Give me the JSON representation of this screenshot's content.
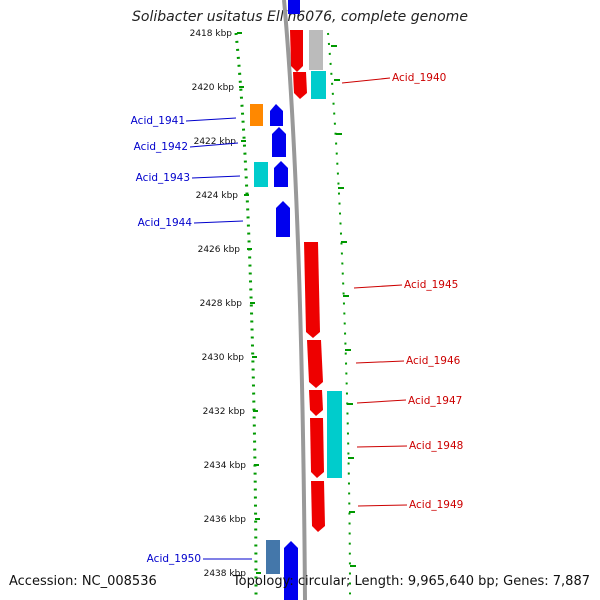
{
  "title": "Solibacter usitatus Ellin6076, complete genome",
  "footer": {
    "accession": "Accession: NC_008536",
    "stats": "Topology: circular; Length: 9,965,640 bp; Genes: 7,887"
  },
  "colors": {
    "forward_strand": "#ff0000",
    "reverse_strand": "#0000ff",
    "cyan_gene": "#00cccc",
    "orange_gene": "#ff8800",
    "gray_gene": "#bbbbbb",
    "steelblue_gene": "#4477aa",
    "ruler": "#009900",
    "backbone": "#999999",
    "left_label": "#0000cc",
    "right_label": "#cc0000"
  },
  "ruler": {
    "ticks": [
      {
        "kbp": 2418,
        "label": "2418 kbp"
      },
      {
        "kbp": 2420,
        "label": "2420 kbp"
      },
      {
        "kbp": 2422,
        "label": "2422 kbp"
      },
      {
        "kbp": 2424,
        "label": "2424 kbp"
      },
      {
        "kbp": 2426,
        "label": "2426 kbp"
      },
      {
        "kbp": 2428,
        "label": "2428 kbp"
      },
      {
        "kbp": 2430,
        "label": "2430 kbp"
      },
      {
        "kbp": 2432,
        "label": "2432 kbp"
      },
      {
        "kbp": 2434,
        "label": "2434 kbp"
      },
      {
        "kbp": 2436,
        "label": "2436 kbp"
      },
      {
        "kbp": 2438,
        "label": "2438 kbp"
      }
    ]
  },
  "labels": {
    "left": [
      "Acid_1941",
      "Acid_1942",
      "Acid_1943",
      "Acid_1944",
      "Acid_1950"
    ],
    "right": [
      "Acid_1940",
      "Acid_1945",
      "Acid_1946",
      "Acid_1947",
      "Acid_1948",
      "Acid_1949"
    ]
  }
}
